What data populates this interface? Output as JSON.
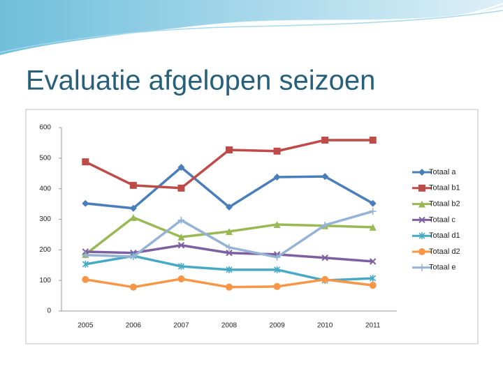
{
  "title": "Evaluatie afgelopen seizoen",
  "chart_data": {
    "type": "line",
    "categories": [
      "2005",
      "2006",
      "2007",
      "2008",
      "2009",
      "2010",
      "2011"
    ],
    "ylim": [
      0,
      600
    ],
    "yticks": [
      0,
      100,
      200,
      300,
      400,
      500,
      600
    ],
    "grid": false,
    "legend": "right",
    "series": [
      {
        "name": "Totaal a",
        "color": "#4a7ebb",
        "marker": "diamond",
        "values": [
          352,
          336,
          470,
          340,
          438,
          440,
          352
        ]
      },
      {
        "name": "Totaal b1",
        "color": "#be4b48",
        "marker": "square",
        "values": [
          488,
          411,
          402,
          527,
          523,
          559,
          559
        ]
      },
      {
        "name": "Totaal b2",
        "color": "#98b954",
        "marker": "triangle",
        "values": [
          185,
          306,
          242,
          260,
          283,
          279,
          274
        ]
      },
      {
        "name": "Totaal c",
        "color": "#7d60a0",
        "marker": "x",
        "values": [
          194,
          190,
          215,
          190,
          185,
          174,
          162
        ]
      },
      {
        "name": "Totaal d1",
        "color": "#46aac5",
        "marker": "star",
        "values": [
          153,
          180,
          146,
          135,
          135,
          100,
          107
        ]
      },
      {
        "name": "Totaal d2",
        "color": "#f79646",
        "marker": "circle",
        "values": [
          103,
          78,
          105,
          78,
          80,
          103,
          84
        ]
      },
      {
        "name": "Totaal e",
        "color": "#95b3d7",
        "marker": "plus",
        "values": [
          183,
          178,
          297,
          208,
          176,
          281,
          326
        ]
      }
    ]
  }
}
